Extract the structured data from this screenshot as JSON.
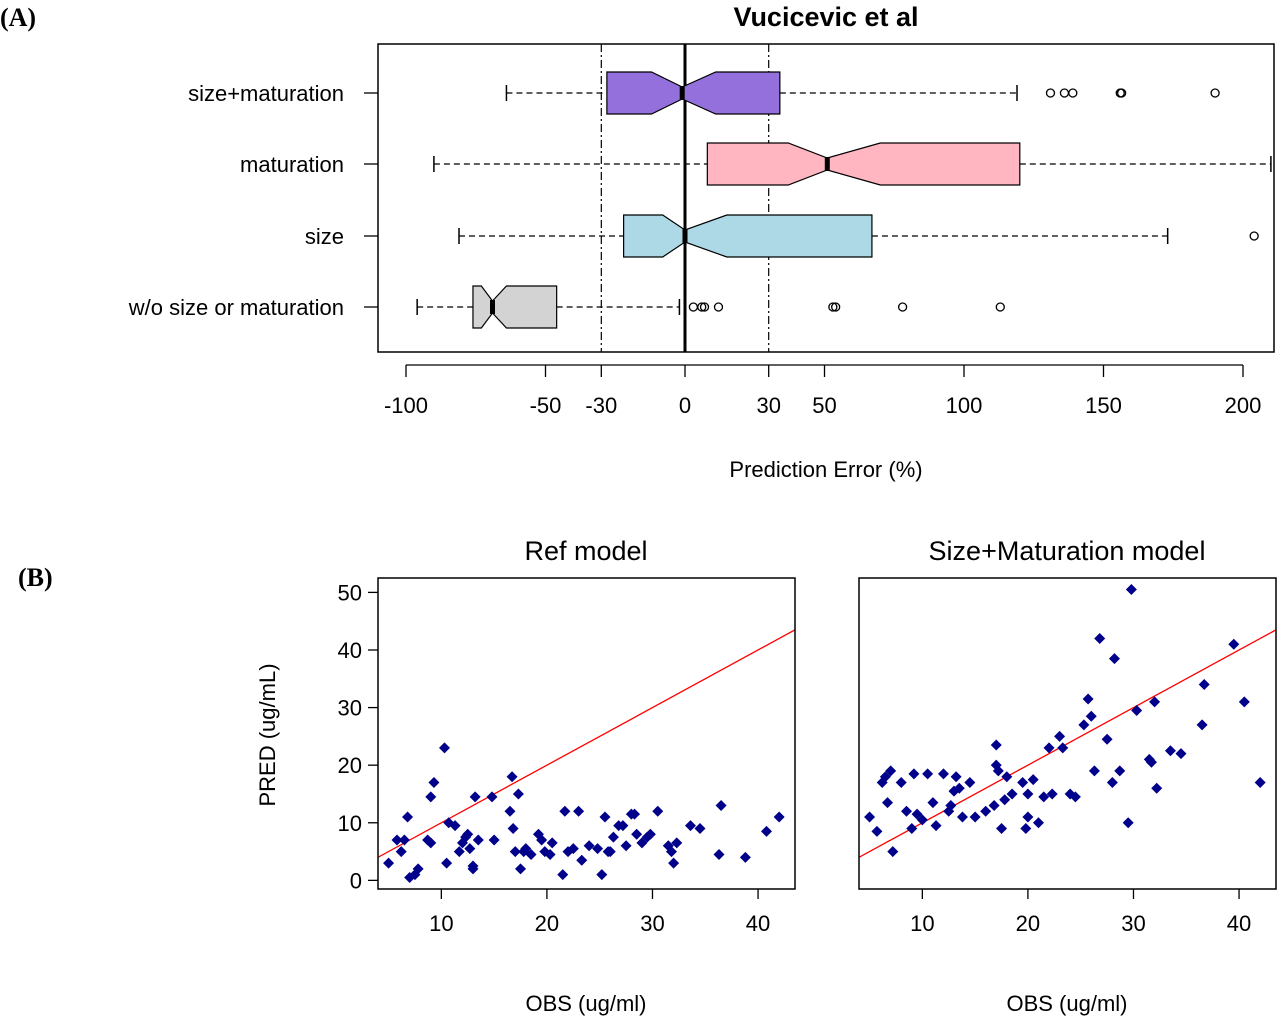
{
  "panels": {
    "a_label": "(A)",
    "b_label": "(B)"
  },
  "colors": {
    "size_maturation": "#9370DB",
    "maturation": "#FFB6C1",
    "size": "#ADD8E6",
    "wo": "#D3D3D3",
    "points": "#00008B",
    "identity_line": "#FF0000"
  },
  "chart_data": [
    {
      "type": "boxplot",
      "orientation": "horizontal",
      "notched": true,
      "title": "Vucicevic et al",
      "xlabel": "Prediction Error (%)",
      "xlim": [
        -110,
        210
      ],
      "xticks": [
        -100,
        -50,
        -30,
        0,
        30,
        50,
        100,
        150,
        200
      ],
      "reference_lines": [
        {
          "x": 0,
          "style": "solid-thick"
        },
        {
          "x": -30,
          "style": "dotdash"
        },
        {
          "x": 30,
          "style": "dotdash"
        }
      ],
      "series": [
        {
          "name": "size+maturation",
          "color": "#9370DB",
          "whisker_low": -64,
          "q1": -28,
          "median": -1,
          "q3": 34,
          "whisker_high": 119,
          "notch": [
            -12,
            11
          ],
          "outliers": [
            131,
            136,
            139,
            156,
            156.5,
            190
          ]
        },
        {
          "name": "maturation",
          "color": "#FFB6C1",
          "whisker_low": -90,
          "q1": 8,
          "median": 51,
          "q3": 120,
          "whisker_high": 210,
          "notch": [
            37,
            70
          ],
          "outliers": []
        },
        {
          "name": "size",
          "color": "#ADD8E6",
          "whisker_low": -81,
          "q1": -22,
          "median": 0,
          "q3": 67,
          "whisker_high": 173,
          "notch": [
            -8,
            15
          ],
          "outliers": [
            204
          ]
        },
        {
          "name": "w/o size or maturation",
          "color": "#D3D3D3",
          "whisker_low": -96,
          "q1": -76,
          "median": -69,
          "q3": -46,
          "whisker_high": -2,
          "notch": [
            -73,
            -64
          ],
          "outliers": [
            3,
            6,
            7,
            12,
            53,
            54,
            78,
            113
          ]
        }
      ]
    },
    {
      "type": "scatter",
      "title": "Ref model",
      "xlabel": "OBS (ug/ml)",
      "ylabel": "PRED (ug/mL)",
      "xlim": [
        4,
        43.5
      ],
      "ylim": [
        -1.5,
        52.5
      ],
      "xticks": [
        10,
        20,
        30,
        40
      ],
      "yticks": [
        0,
        10,
        20,
        30,
        40,
        50
      ],
      "identity_line": true,
      "points": [
        [
          5,
          3
        ],
        [
          5.8,
          7
        ],
        [
          6.2,
          5
        ],
        [
          6.5,
          7
        ],
        [
          6.8,
          11
        ],
        [
          7,
          0.5
        ],
        [
          7.5,
          1
        ],
        [
          7.8,
          2
        ],
        [
          8.7,
          7
        ],
        [
          9,
          6.5
        ],
        [
          9,
          14.5
        ],
        [
          9.3,
          17
        ],
        [
          10.3,
          23
        ],
        [
          10.5,
          3
        ],
        [
          10.7,
          10
        ],
        [
          11.3,
          9.5
        ],
        [
          11.7,
          5
        ],
        [
          12,
          6.5
        ],
        [
          12.3,
          7.5
        ],
        [
          12.5,
          8
        ],
        [
          12.7,
          5.5
        ],
        [
          13,
          2.5
        ],
        [
          13,
          2
        ],
        [
          13.2,
          14.5
        ],
        [
          13.5,
          7
        ],
        [
          14.8,
          14.5
        ],
        [
          15,
          7
        ],
        [
          16.5,
          12
        ],
        [
          16.7,
          18
        ],
        [
          16.8,
          9
        ],
        [
          17,
          5
        ],
        [
          17.3,
          15
        ],
        [
          17.5,
          2
        ],
        [
          17.8,
          5
        ],
        [
          18,
          5.5
        ],
        [
          18.5,
          4.5
        ],
        [
          19.2,
          8
        ],
        [
          19.5,
          7
        ],
        [
          19.8,
          5
        ],
        [
          20.3,
          4.5
        ],
        [
          20.5,
          6.5
        ],
        [
          21.5,
          1
        ],
        [
          21.7,
          12
        ],
        [
          22,
          5
        ],
        [
          22.5,
          5.5
        ],
        [
          23,
          12
        ],
        [
          23.3,
          3.5
        ],
        [
          24,
          6
        ],
        [
          24.8,
          5.5
        ],
        [
          25.2,
          1
        ],
        [
          25.5,
          11
        ],
        [
          25.8,
          5
        ],
        [
          26,
          5
        ],
        [
          26.3,
          7.5
        ],
        [
          26.8,
          9.5
        ],
        [
          27.2,
          9.5
        ],
        [
          27.5,
          6
        ],
        [
          28,
          11.5
        ],
        [
          28.3,
          11.5
        ],
        [
          28.5,
          8
        ],
        [
          29,
          6.5
        ],
        [
          29.5,
          7.5
        ],
        [
          29.8,
          8
        ],
        [
          30.5,
          12
        ],
        [
          31.5,
          6
        ],
        [
          31.8,
          5
        ],
        [
          32,
          3
        ],
        [
          32.3,
          6.5
        ],
        [
          33.6,
          9.5
        ],
        [
          34.5,
          9
        ],
        [
          36.5,
          13
        ],
        [
          36.3,
          4.5
        ],
        [
          38.8,
          4
        ],
        [
          40.8,
          8.5
        ],
        [
          42,
          11
        ]
      ]
    },
    {
      "type": "scatter",
      "title": "Size+Maturation model",
      "xlabel": "OBS (ug/ml)",
      "xlim": [
        4,
        43.5
      ],
      "ylim": [
        -1.5,
        52.5
      ],
      "xticks": [
        10,
        20,
        30,
        40
      ],
      "yticks": [
        0,
        10,
        20,
        30,
        40,
        50
      ],
      "identity_line": true,
      "points": [
        [
          5,
          11
        ],
        [
          5.7,
          8.5
        ],
        [
          6.2,
          17
        ],
        [
          6.5,
          18
        ],
        [
          6.7,
          13.5
        ],
        [
          7,
          19
        ],
        [
          7.2,
          5
        ],
        [
          8,
          17
        ],
        [
          8.5,
          12
        ],
        [
          9,
          9
        ],
        [
          9.2,
          18.5
        ],
        [
          9.5,
          11.5
        ],
        [
          10,
          10.5
        ],
        [
          10.5,
          18.5
        ],
        [
          11,
          13.5
        ],
        [
          11.3,
          9.5
        ],
        [
          12,
          18.5
        ],
        [
          12.5,
          12
        ],
        [
          12.7,
          13
        ],
        [
          13,
          15.5
        ],
        [
          13.2,
          18
        ],
        [
          13.5,
          16
        ],
        [
          13.8,
          11
        ],
        [
          14.5,
          17
        ],
        [
          15,
          11
        ],
        [
          16,
          12
        ],
        [
          16.8,
          13
        ],
        [
          17,
          23.5
        ],
        [
          17,
          20
        ],
        [
          17.2,
          19
        ],
        [
          17.5,
          9
        ],
        [
          17.8,
          14
        ],
        [
          18,
          18
        ],
        [
          18.5,
          15
        ],
        [
          19.5,
          17
        ],
        [
          19.8,
          9
        ],
        [
          20,
          11
        ],
        [
          20,
          15
        ],
        [
          20.5,
          17.5
        ],
        [
          21,
          10
        ],
        [
          21.5,
          14.5
        ],
        [
          22,
          23
        ],
        [
          22.3,
          15
        ],
        [
          23,
          25
        ],
        [
          23.3,
          23
        ],
        [
          24,
          15
        ],
        [
          24.5,
          14.5
        ],
        [
          25.3,
          27
        ],
        [
          25.7,
          31.5
        ],
        [
          26,
          28.5
        ],
        [
          26.3,
          19
        ],
        [
          26.8,
          42
        ],
        [
          27.5,
          24.5
        ],
        [
          28,
          17
        ],
        [
          28.2,
          38.5
        ],
        [
          28.7,
          19
        ],
        [
          29.5,
          10
        ],
        [
          29.8,
          50.5
        ],
        [
          30.3,
          29.5
        ],
        [
          31.5,
          21
        ],
        [
          31.7,
          20.5
        ],
        [
          32,
          31
        ],
        [
          32.2,
          16
        ],
        [
          33.5,
          22.5
        ],
        [
          34.5,
          22
        ],
        [
          36.5,
          27
        ],
        [
          36.7,
          34
        ],
        [
          39.5,
          41
        ],
        [
          40.5,
          31
        ],
        [
          42,
          17
        ]
      ]
    }
  ]
}
